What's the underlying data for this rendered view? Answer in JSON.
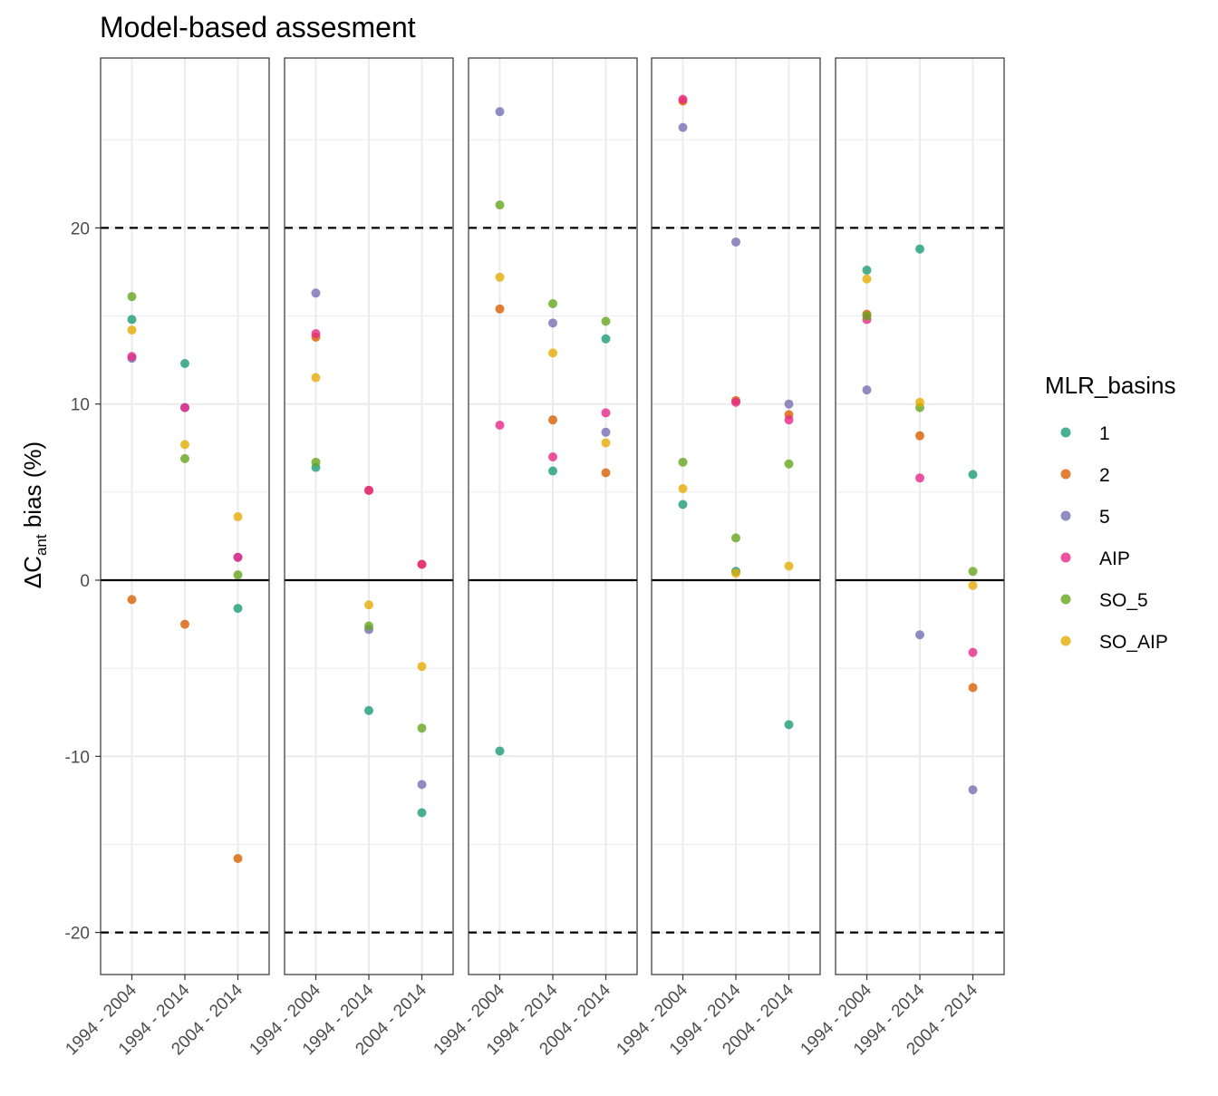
{
  "chart_data": {
    "type": "scatter",
    "title": "Model-based assesment",
    "ylabel": {
      "prefix": "ΔC",
      "subscript": "ant",
      "suffix": " bias (%)"
    },
    "xlabel": "",
    "ylim": [
      -22.5,
      29.5
    ],
    "yticks": [
      -20,
      -10,
      0,
      10,
      20
    ],
    "reference_lines": {
      "solid": [
        0
      ],
      "dashed": [
        -20,
        20
      ]
    },
    "grid": true,
    "categories": [
      "1994 - 2004",
      "1994 - 2014",
      "2004 - 2014"
    ],
    "legend": {
      "title": "MLR_basins",
      "position": "right"
    },
    "series": [
      {
        "name": "1",
        "color": "#1b9e77"
      },
      {
        "name": "2",
        "color": "#d95f02"
      },
      {
        "name": "5",
        "color": "#7570b3"
      },
      {
        "name": "AIP",
        "color": "#e7298a"
      },
      {
        "name": "SO_5",
        "color": "#66a61e"
      },
      {
        "name": "SO_AIP",
        "color": "#e6ab02"
      }
    ],
    "panels": [
      {
        "points": {
          "1": [
            14.8,
            12.3,
            -1.6
          ],
          "2": [
            -1.1,
            -2.5,
            -15.8
          ],
          "5": [
            12.6,
            9.8,
            1.3
          ],
          "AIP": [
            12.7,
            9.8,
            1.3
          ],
          "SO_5": [
            16.1,
            6.9,
            0.3
          ],
          "SO_AIP": [
            14.2,
            7.7,
            3.6
          ]
        }
      },
      {
        "points": {
          "1": [
            6.4,
            -7.4,
            -13.2
          ],
          "2": [
            13.8,
            5.1,
            0.9
          ],
          "5": [
            16.3,
            -2.8,
            -11.6
          ],
          "AIP": [
            14.0,
            5.1,
            0.9
          ],
          "SO_5": [
            6.7,
            -2.6,
            -8.4
          ],
          "SO_AIP": [
            11.5,
            -1.4,
            -4.9
          ]
        }
      },
      {
        "points": {
          "1": [
            -9.7,
            6.2,
            13.7
          ],
          "2": [
            15.4,
            9.1,
            6.1
          ],
          "5": [
            26.6,
            14.6,
            8.4
          ],
          "AIP": [
            8.8,
            7.0,
            9.5
          ],
          "SO_5": [
            21.3,
            15.7,
            14.7
          ],
          "SO_AIP": [
            17.2,
            12.9,
            7.8
          ]
        }
      },
      {
        "points": {
          "1": [
            4.3,
            0.5,
            -8.2
          ],
          "2": [
            27.2,
            10.2,
            9.4
          ],
          "5": [
            25.7,
            19.2,
            10.0
          ],
          "AIP": [
            27.3,
            10.1,
            9.1
          ],
          "SO_5": [
            6.7,
            2.4,
            6.6
          ],
          "SO_AIP": [
            5.2,
            0.4,
            0.8
          ]
        }
      },
      {
        "points": {
          "1": [
            17.6,
            18.8,
            6.0
          ],
          "2": [
            15.1,
            8.2,
            -6.1
          ],
          "5": [
            10.8,
            -3.1,
            -11.9
          ],
          "AIP": [
            14.8,
            5.8,
            -4.1
          ],
          "SO_5": [
            15.0,
            9.8,
            0.5
          ],
          "SO_AIP": [
            17.1,
            10.1,
            -0.3
          ]
        }
      }
    ]
  }
}
